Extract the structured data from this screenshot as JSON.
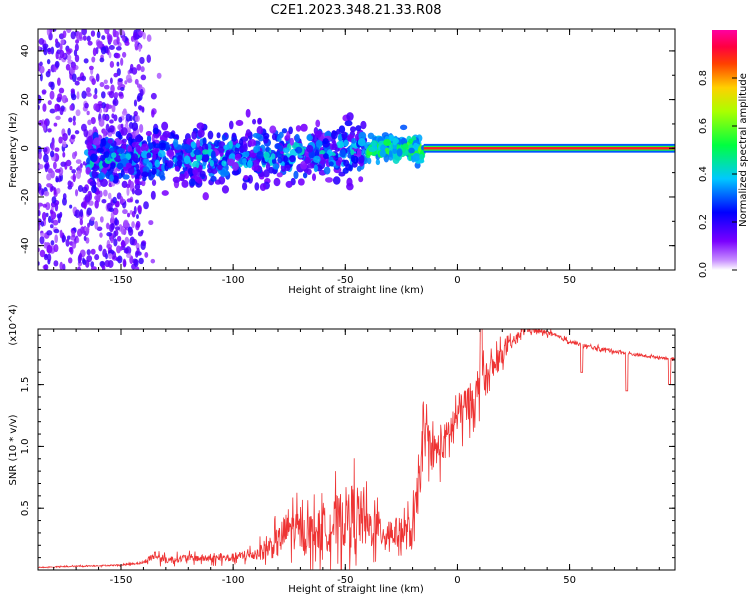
{
  "title": "C2E1.2023.348.21.33.R08",
  "chart_data": [
    {
      "type": "heatmap",
      "xlabel": "Height of straight line (km)",
      "ylabel": "Frequency (Hz)",
      "xlim": [
        -187,
        97
      ],
      "ylim": [
        -50,
        49
      ],
      "xticks": [
        -150,
        -100,
        -50,
        0,
        50
      ],
      "xtick_labels": [
        "-150",
        "-100",
        "-50",
        "0",
        "50"
      ],
      "yticks": [
        -40,
        -20,
        0,
        20,
        40
      ],
      "ytick_labels": [
        "-40",
        "-20",
        "0",
        "20",
        "40"
      ],
      "colorbar": {
        "label": "Normalized spectral amplitude",
        "range": [
          0,
          1
        ],
        "ticks": [
          0.0,
          0.2,
          0.4,
          0.6,
          0.8
        ],
        "tick_labels": [
          "0.0",
          "0.2",
          "0.4",
          "0.6",
          "0.8"
        ],
        "colormap": "rainbow (violet-blue-cyan-green-yellow-red-magenta)"
      },
      "features": [
        {
          "desc": "noise scatter",
          "x_range": [
            -187,
            -140
          ],
          "freq_range": [
            -50,
            49
          ],
          "amplitude": [
            0.05,
            0.2
          ]
        },
        {
          "desc": "broad band",
          "x_range": [
            -165,
            -40
          ],
          "freq_center": -3,
          "freq_width": 12,
          "amplitude": [
            0.1,
            0.45
          ]
        },
        {
          "desc": "narrowing band",
          "x_range": [
            -40,
            -15
          ],
          "freq_center": 0,
          "freq_width": 5,
          "amplitude": [
            0.3,
            0.6
          ]
        },
        {
          "desc": "narrow carrier line",
          "x_range": [
            -15,
            97
          ],
          "freq_center": 0,
          "freq_width": 1.5,
          "amplitude": [
            0.85,
            0.95
          ]
        }
      ]
    },
    {
      "type": "line",
      "xlabel": "Height of straight line (km)",
      "ylabel": "SNR (10 * v/v)",
      "y_multiplier": "(x10^4)",
      "xlim": [
        -187,
        97
      ],
      "ylim": [
        0,
        1.95
      ],
      "xticks": [
        -150,
        -100,
        -50,
        0,
        50
      ],
      "xtick_labels": [
        "-150",
        "-100",
        "-50",
        "0",
        "50"
      ],
      "yticks": [
        0.5,
        1.0,
        1.5
      ],
      "ytick_labels": [
        "0.5",
        "1.0",
        "1.5"
      ],
      "color": "#ee3333",
      "series": [
        {
          "x": [
            -187,
            -170,
            -150,
            -140,
            -135,
            -130,
            -120,
            -110,
            -100,
            -90,
            -80,
            -75,
            -70,
            -60,
            -50,
            -45,
            -40,
            -30,
            -25,
            -20,
            -18,
            -15,
            -10,
            -5,
            0,
            5,
            10,
            15,
            20,
            25,
            30,
            40,
            50,
            60,
            70,
            80,
            90,
            97
          ],
          "y": [
            0.02,
            0.03,
            0.04,
            0.06,
            0.12,
            0.08,
            0.1,
            0.09,
            0.1,
            0.13,
            0.22,
            0.35,
            0.3,
            0.32,
            0.42,
            0.45,
            0.35,
            0.3,
            0.3,
            0.3,
            0.55,
            1.1,
            0.95,
            1.05,
            1.25,
            1.35,
            1.45,
            1.6,
            1.75,
            1.85,
            1.95,
            1.92,
            1.85,
            1.8,
            1.77,
            1.74,
            1.72,
            1.71
          ],
          "noise_amplitude": [
            0.005,
            0.01,
            0.01,
            0.02,
            0.08,
            0.06,
            0.06,
            0.06,
            0.07,
            0.1,
            0.25,
            0.35,
            0.3,
            0.35,
            0.5,
            0.55,
            0.35,
            0.25,
            0.25,
            0.3,
            0.4,
            0.35,
            0.3,
            0.3,
            0.35,
            0.3,
            0.3,
            0.25,
            0.15,
            0.08,
            0.05,
            0.04,
            0.03,
            0.03,
            0.03,
            0.02,
            0.02,
            0.02
          ]
        }
      ]
    }
  ]
}
